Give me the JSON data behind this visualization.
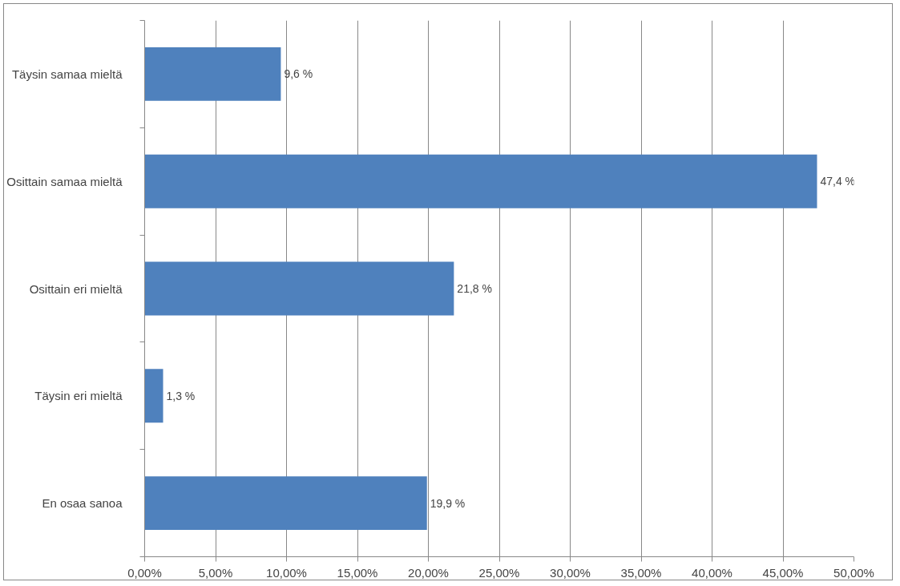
{
  "chart_data": {
    "type": "bar",
    "orientation": "horizontal",
    "categories": [
      "Täysin samaa mieltä",
      "Osittain samaa mieltä",
      "Osittain eri mieltä",
      "Täysin eri mieltä",
      "En osaa sanoa"
    ],
    "values": [
      9.6,
      47.4,
      21.8,
      1.3,
      19.9
    ],
    "value_labels": [
      "9,6 %",
      "47,4 %",
      "21,8 %",
      "1,3 %",
      "19,9 %"
    ],
    "color": "#4f81bd",
    "xlim": [
      0,
      50
    ],
    "xticks": [
      {
        "value": 0,
        "label": "0,00%"
      },
      {
        "value": 5,
        "label": "5,00%"
      },
      {
        "value": 10,
        "label": "10,00%"
      },
      {
        "value": 15,
        "label": "15,00%"
      },
      {
        "value": 20,
        "label": "20,00%"
      },
      {
        "value": 25,
        "label": "25,00%"
      },
      {
        "value": 30,
        "label": "30,00%"
      },
      {
        "value": 35,
        "label": "35,00%"
      },
      {
        "value": 40,
        "label": "40,00%"
      },
      {
        "value": 45,
        "label": "45,00%"
      },
      {
        "value": 50,
        "label": "50,00%"
      }
    ],
    "grid": "x",
    "legend": false
  }
}
